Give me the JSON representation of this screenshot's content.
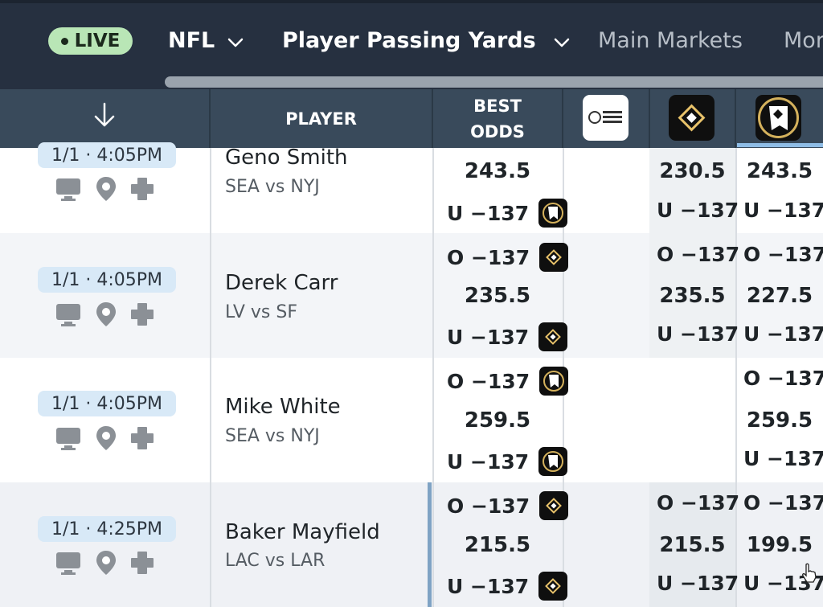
{
  "topnav": {
    "live_label": "LIVE",
    "league": "NFL",
    "market": "Player Passing Yards",
    "main_markets": "Main Markets",
    "more": "Mor"
  },
  "table": {
    "headers": {
      "sort": "↓",
      "player": "PLAYER",
      "best_odds_line1": "BEST",
      "best_odds_line2": "ODDS"
    },
    "book_logos": [
      "monkey-knife-fight-logo",
      "book-diamond-logo",
      "book-hound-logo"
    ],
    "rows": [
      {
        "time": "1/1 · 4:05PM",
        "player": "Geno Smith",
        "matchup": "SEA vs NYJ",
        "best": {
          "over": "",
          "line": "243.5",
          "under": "U −137"
        },
        "book2": {
          "over": "",
          "line": "230.5",
          "under": "U −137"
        },
        "book3": {
          "over": "",
          "line": "243.5",
          "under": "U −137"
        }
      },
      {
        "time": "1/1 · 4:05PM",
        "player": "Derek Carr",
        "matchup": "LV vs SF",
        "best": {
          "over": "O −137",
          "line": "235.5",
          "under": "U −137"
        },
        "book2": {
          "over": "O −137",
          "line": "235.5",
          "under": "U −137"
        },
        "book3": {
          "over": "O −137",
          "line": "227.5",
          "under": "U −137"
        }
      },
      {
        "time": "1/1 · 4:05PM",
        "player": "Mike White",
        "matchup": "SEA vs NYJ",
        "best": {
          "over": "O −137",
          "line": "259.5",
          "under": "U −137"
        },
        "book2": {
          "over": "",
          "line": "",
          "under": ""
        },
        "book3": {
          "over": "O −137",
          "line": "259.5",
          "under": "U −137"
        }
      },
      {
        "time": "1/1 · 4:25PM",
        "player": "Baker Mayfield",
        "matchup": "LAC vs LAR",
        "best": {
          "over": "O −137",
          "line": "215.5",
          "under": "U −137"
        },
        "book2": {
          "over": "O −137",
          "line": "215.5",
          "under": "U −137"
        },
        "book3": {
          "over": "O −137",
          "line": "199.5",
          "under": "U −137"
        }
      }
    ]
  },
  "colors": {
    "topbar": "#263040",
    "header": "#394a5b",
    "live_badge": "#b9e6b6",
    "time_pill": "#d8e9f7"
  }
}
